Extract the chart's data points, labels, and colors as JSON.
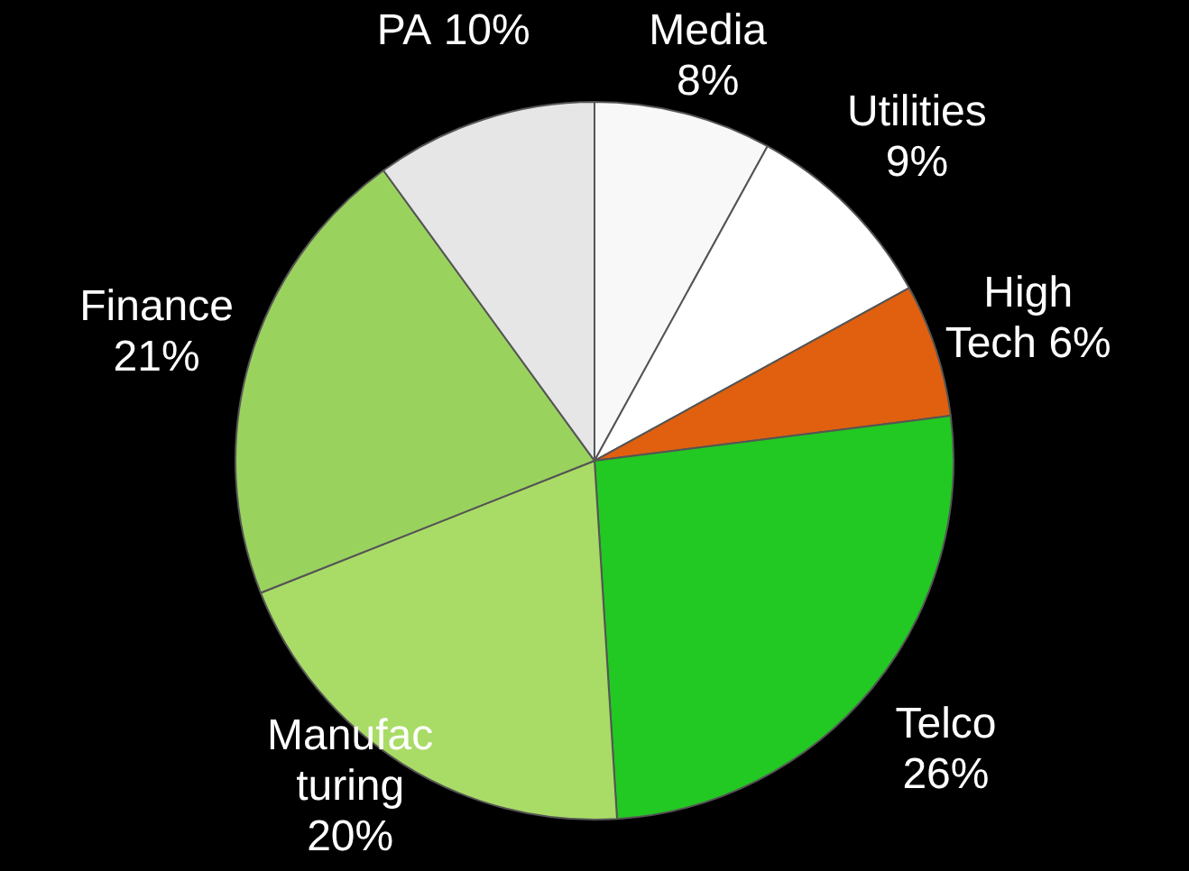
{
  "chart_data": {
    "type": "pie",
    "categories": [
      "Media",
      "Utilities",
      "High Tech",
      "Telco",
      "Manufacturing",
      "Finance",
      "PA"
    ],
    "values": [
      8,
      9,
      6,
      26,
      20,
      21,
      10
    ],
    "colors": [
      "#f8f8f8",
      "#ffffff",
      "#e0600f",
      "#22c922",
      "#a9dc66",
      "#9ad25e",
      "#e6e6e6"
    ],
    "value_labels": [
      "8%",
      "9%",
      "6%",
      "26%",
      "20%",
      "21%",
      "10%"
    ],
    "legend": false
  }
}
